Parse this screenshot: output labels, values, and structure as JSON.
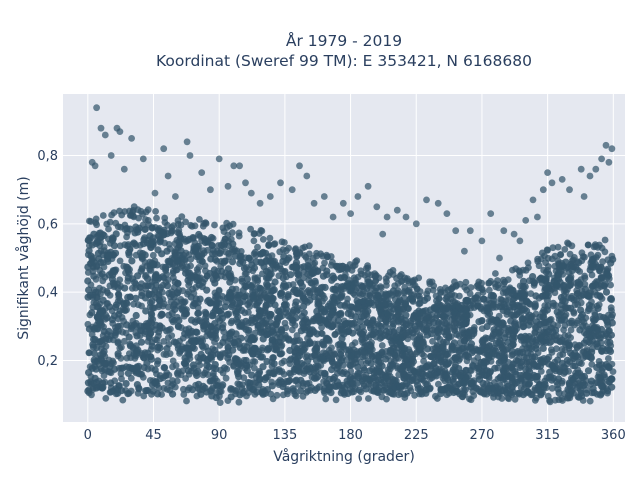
{
  "chart_data": {
    "type": "scatter",
    "title_line1": "År 1979 - 2019",
    "title_line2": "Koordinat (Sweref 99 TM): E 353421, N 6168680",
    "xlabel": "Vågriktning (grader)",
    "ylabel": "Signifikant våghöjd (m)",
    "xlim": [
      -17,
      368
    ],
    "ylim": [
      0.02,
      0.98
    ],
    "xticks": [
      0,
      45,
      90,
      135,
      180,
      225,
      270,
      315,
      360
    ],
    "xtick_labels": [
      "0",
      "45",
      "90",
      "135",
      "180",
      "225",
      "270",
      "315",
      "360"
    ],
    "yticks": [
      0.2,
      0.4,
      0.6,
      0.8
    ],
    "ytick_labels": [
      "0,2",
      "0,4",
      "0,6",
      "0,8"
    ],
    "grid": true,
    "marker_color": "#34566c",
    "plot_bg": "#e5e8f0",
    "density_envelope": {
      "x": [
        0,
        30,
        60,
        90,
        120,
        150,
        180,
        210,
        240,
        270,
        300,
        330,
        360
      ],
      "y_low": [
        0.08,
        0.08,
        0.08,
        0.07,
        0.08,
        0.08,
        0.08,
        0.08,
        0.08,
        0.08,
        0.08,
        0.07,
        0.08
      ],
      "y_high": [
        0.63,
        0.66,
        0.64,
        0.62,
        0.58,
        0.55,
        0.5,
        0.47,
        0.44,
        0.44,
        0.5,
        0.56,
        0.56
      ]
    },
    "outliers": [
      [
        6,
        0.94
      ],
      [
        9,
        0.88
      ],
      [
        12,
        0.86
      ],
      [
        20,
        0.88
      ],
      [
        22,
        0.87
      ],
      [
        30,
        0.85
      ],
      [
        3,
        0.78
      ],
      [
        5,
        0.77
      ],
      [
        16,
        0.8
      ],
      [
        25,
        0.76
      ],
      [
        38,
        0.79
      ],
      [
        52,
        0.82
      ],
      [
        55,
        0.74
      ],
      [
        68,
        0.84
      ],
      [
        70,
        0.8
      ],
      [
        78,
        0.75
      ],
      [
        90,
        0.79
      ],
      [
        100,
        0.77
      ],
      [
        104,
        0.77
      ],
      [
        108,
        0.72
      ],
      [
        112,
        0.69
      ],
      [
        125,
        0.68
      ],
      [
        132,
        0.72
      ],
      [
        140,
        0.7
      ],
      [
        145,
        0.77
      ],
      [
        150,
        0.74
      ],
      [
        155,
        0.66
      ],
      [
        162,
        0.68
      ],
      [
        175,
        0.66
      ],
      [
        180,
        0.63
      ],
      [
        185,
        0.68
      ],
      [
        192,
        0.71
      ],
      [
        198,
        0.65
      ],
      [
        205,
        0.62
      ],
      [
        212,
        0.64
      ],
      [
        218,
        0.62
      ],
      [
        225,
        0.6
      ],
      [
        232,
        0.67
      ],
      [
        240,
        0.66
      ],
      [
        246,
        0.63
      ],
      [
        252,
        0.58
      ],
      [
        262,
        0.58
      ],
      [
        270,
        0.55
      ],
      [
        276,
        0.63
      ],
      [
        285,
        0.58
      ],
      [
        292,
        0.57
      ],
      [
        300,
        0.61
      ],
      [
        305,
        0.67
      ],
      [
        312,
        0.7
      ],
      [
        315,
        0.75
      ],
      [
        318,
        0.72
      ],
      [
        325,
        0.73
      ],
      [
        330,
        0.7
      ],
      [
        338,
        0.76
      ],
      [
        344,
        0.74
      ],
      [
        348,
        0.76
      ],
      [
        352,
        0.79
      ],
      [
        355,
        0.83
      ],
      [
        357,
        0.78
      ],
      [
        359,
        0.82
      ],
      [
        46,
        0.69
      ],
      [
        60,
        0.68
      ],
      [
        84,
        0.7
      ],
      [
        96,
        0.71
      ],
      [
        118,
        0.66
      ],
      [
        168,
        0.62
      ],
      [
        202,
        0.57
      ],
      [
        258,
        0.52
      ],
      [
        282,
        0.5
      ],
      [
        296,
        0.55
      ],
      [
        308,
        0.62
      ],
      [
        340,
        0.68
      ]
    ]
  }
}
